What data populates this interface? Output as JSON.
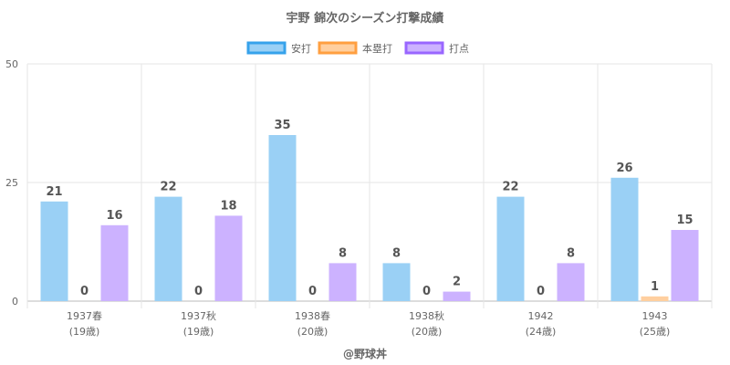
{
  "chart_data": {
    "type": "bar",
    "title": "宇野 錦次のシーズン打撃成績",
    "categories": [
      "1937春",
      "1937秋",
      "1938春",
      "1938秋",
      "1942",
      "1943"
    ],
    "subcategories": [
      "(19歳)",
      "(19歳)",
      "(20歳)",
      "(20歳)",
      "(24歳)",
      "(25歳)"
    ],
    "series": [
      {
        "name": "安打",
        "values": [
          21,
          22,
          35,
          8,
          22,
          26
        ],
        "fill": "#9ad0f5",
        "stroke": "#36a2eb"
      },
      {
        "name": "本塁打",
        "values": [
          0,
          0,
          0,
          0,
          0,
          1
        ],
        "fill": "#ffcf9f",
        "stroke": "#ff9f40"
      },
      {
        "name": "打点",
        "values": [
          16,
          18,
          8,
          2,
          8,
          15
        ],
        "fill": "#ccb2ff",
        "stroke": "#9966ff"
      }
    ],
    "ylim": [
      0,
      50
    ],
    "yticks": [
      0,
      25,
      50
    ],
    "grid": true,
    "legend": "top-center",
    "xlabel": "",
    "ylabel": ""
  },
  "footer": "@野球丼"
}
